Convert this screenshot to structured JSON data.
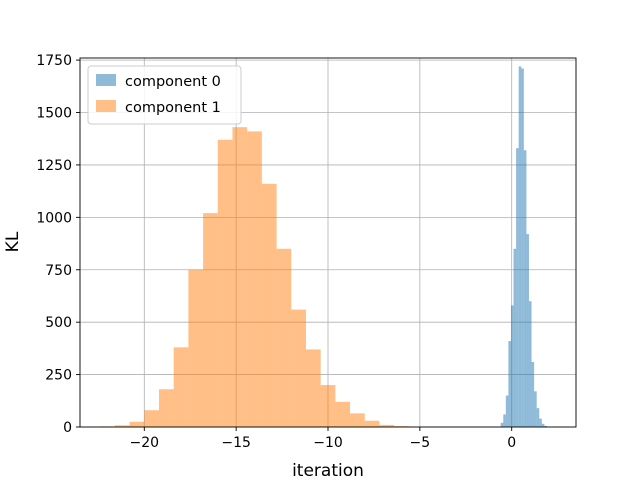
{
  "chart_data": {
    "type": "histogram",
    "title": "",
    "xlabel": "iteration",
    "ylabel": "KL",
    "xlim": [
      -23.5,
      3.5
    ],
    "ylim": [
      0,
      1760
    ],
    "x_ticks": [
      -20,
      -15,
      -10,
      -5,
      0
    ],
    "x_tick_labels": [
      "−20",
      "−15",
      "−10",
      "−5",
      "0"
    ],
    "y_ticks": [
      0,
      250,
      500,
      750,
      1000,
      1250,
      1500,
      1750
    ],
    "y_tick_labels": [
      "0",
      "250",
      "500",
      "750",
      "1000",
      "1250",
      "1500",
      "1750"
    ],
    "grid": true,
    "legend": {
      "position": "top-left"
    },
    "series": [
      {
        "name": "component 0",
        "color": "#1f77b4",
        "alpha": 0.5,
        "bin_width": 0.14,
        "bins": [
          [
            -0.6,
            20
          ],
          [
            -0.46,
            60
          ],
          [
            -0.32,
            150
          ],
          [
            -0.18,
            410
          ],
          [
            -0.04,
            580
          ],
          [
            0.1,
            850
          ],
          [
            0.24,
            1330
          ],
          [
            0.38,
            1720
          ],
          [
            0.52,
            1710
          ],
          [
            0.66,
            1320
          ],
          [
            0.8,
            920
          ],
          [
            0.94,
            600
          ],
          [
            1.08,
            310
          ],
          [
            1.22,
            170
          ],
          [
            1.36,
            90
          ],
          [
            1.5,
            40
          ],
          [
            1.64,
            15
          ],
          [
            1.78,
            5
          ]
        ]
      },
      {
        "name": "component 1",
        "color": "#ff7f0e",
        "alpha": 0.5,
        "bin_width": 0.8,
        "bins": [
          [
            -22.4,
            3
          ],
          [
            -21.6,
            8
          ],
          [
            -20.8,
            25
          ],
          [
            -20.0,
            80
          ],
          [
            -19.2,
            180
          ],
          [
            -18.4,
            380
          ],
          [
            -17.6,
            750
          ],
          [
            -16.8,
            1020
          ],
          [
            -16.0,
            1370
          ],
          [
            -15.2,
            1430
          ],
          [
            -14.4,
            1410
          ],
          [
            -13.6,
            1160
          ],
          [
            -12.8,
            850
          ],
          [
            -12.0,
            560
          ],
          [
            -11.2,
            370
          ],
          [
            -10.4,
            200
          ],
          [
            -9.6,
            120
          ],
          [
            -8.8,
            65
          ],
          [
            -8.0,
            30
          ],
          [
            -7.2,
            10
          ],
          [
            -6.4,
            4
          ]
        ]
      }
    ]
  }
}
